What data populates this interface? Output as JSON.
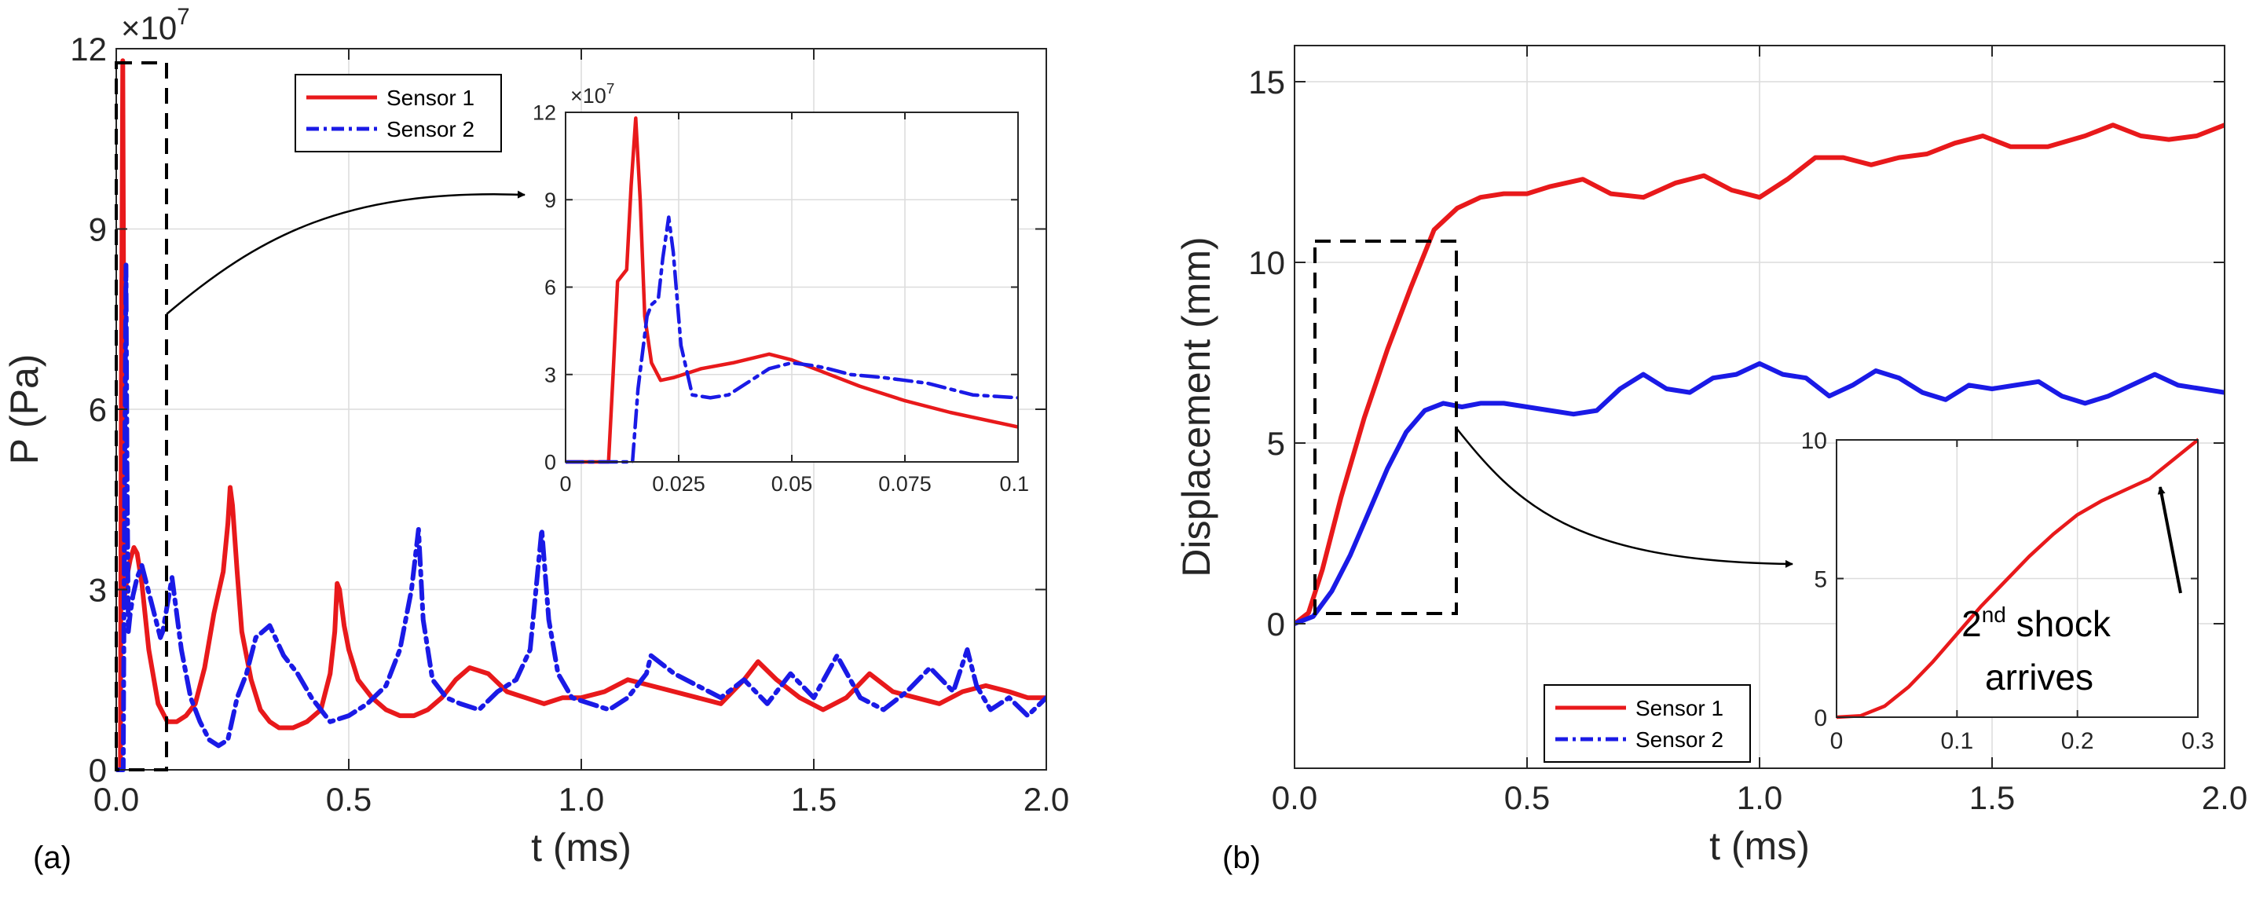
{
  "figure": {
    "panel_a_label": "(a)",
    "panel_b_label": "(b)"
  },
  "colors": {
    "sensor1": "#e8191b",
    "sensor2": "#1a1ae6",
    "axis": "#262626",
    "grid": "#dcdcdc"
  },
  "chart_data": [
    {
      "id": "a_main",
      "type": "line",
      "xlabel": "t (ms)",
      "ylabel": "P (Pa)",
      "exponent_label": "×10",
      "exponent_power": "7",
      "xlim": [
        0,
        2.0
      ],
      "ylim": [
        0,
        12
      ],
      "xticks": [
        0,
        0.5,
        1.0,
        1.5,
        2.0
      ],
      "xtick_labels": [
        "0.0",
        "0.5",
        "1.0",
        "1.5",
        "2.0"
      ],
      "yticks": [
        0,
        3,
        6,
        9,
        12
      ],
      "ytick_labels": [
        "0",
        "3",
        "6",
        "9",
        "12"
      ],
      "grid": true,
      "legend": {
        "position": "top-center",
        "entries": [
          "Sensor 1",
          "Sensor 2"
        ]
      },
      "zoom_box": {
        "x": [
          0,
          0.1
        ],
        "y": [
          0,
          12
        ]
      },
      "series": [
        {
          "name": "Sensor 1",
          "style": "solid",
          "color_key": "sensor1",
          "x": [
            0,
            0.009,
            0.011,
            0.014,
            0.018,
            0.02,
            0.025,
            0.03,
            0.038,
            0.045,
            0.055,
            0.07,
            0.09,
            0.11,
            0.13,
            0.15,
            0.17,
            0.19,
            0.21,
            0.23,
            0.24,
            0.245,
            0.25,
            0.26,
            0.27,
            0.29,
            0.31,
            0.33,
            0.35,
            0.38,
            0.41,
            0.44,
            0.46,
            0.47,
            0.475,
            0.48,
            0.49,
            0.5,
            0.52,
            0.55,
            0.58,
            0.61,
            0.64,
            0.67,
            0.7,
            0.73,
            0.76,
            0.8,
            0.84,
            0.88,
            0.92,
            0.96,
            1.0,
            1.05,
            1.1,
            1.15,
            1.2,
            1.25,
            1.3,
            1.35,
            1.38,
            1.42,
            1.47,
            1.52,
            1.57,
            1.62,
            1.67,
            1.72,
            1.77,
            1.82,
            1.87,
            1.92,
            1.96,
            2.0
          ],
          "y": [
            0,
            0,
            6.4,
            11.8,
            2.9,
            3.0,
            3.3,
            3.5,
            3.7,
            3.6,
            3.1,
            2.0,
            1.1,
            0.8,
            0.8,
            0.9,
            1.1,
            1.7,
            2.6,
            3.3,
            4.1,
            4.7,
            4.4,
            3.3,
            2.3,
            1.5,
            1.0,
            0.8,
            0.7,
            0.7,
            0.8,
            1.0,
            1.6,
            2.3,
            3.1,
            3.0,
            2.4,
            2.0,
            1.5,
            1.2,
            1.0,
            0.9,
            0.9,
            1.0,
            1.2,
            1.5,
            1.7,
            1.6,
            1.3,
            1.2,
            1.1,
            1.2,
            1.2,
            1.3,
            1.5,
            1.4,
            1.3,
            1.2,
            1.1,
            1.5,
            1.8,
            1.5,
            1.2,
            1.0,
            1.2,
            1.6,
            1.3,
            1.2,
            1.1,
            1.3,
            1.4,
            1.3,
            1.2,
            1.2
          ]
        },
        {
          "name": "Sensor 2",
          "style": "dashdot",
          "color_key": "sensor2",
          "x": [
            0,
            0.015,
            0.018,
            0.021,
            0.023,
            0.026,
            0.03,
            0.036,
            0.045,
            0.055,
            0.065,
            0.075,
            0.085,
            0.095,
            0.1,
            0.12,
            0.14,
            0.16,
            0.18,
            0.2,
            0.22,
            0.24,
            0.26,
            0.28,
            0.3,
            0.33,
            0.36,
            0.39,
            0.42,
            0.46,
            0.5,
            0.54,
            0.58,
            0.61,
            0.635,
            0.65,
            0.66,
            0.68,
            0.71,
            0.74,
            0.78,
            0.82,
            0.86,
            0.89,
            0.905,
            0.915,
            0.93,
            0.95,
            0.98,
            1.02,
            1.06,
            1.1,
            1.14,
            1.15,
            1.2,
            1.25,
            1.3,
            1.35,
            1.4,
            1.45,
            1.5,
            1.55,
            1.6,
            1.65,
            1.7,
            1.75,
            1.8,
            1.83,
            1.85,
            1.88,
            1.92,
            1.96,
            2.0
          ],
          "y": [
            0,
            0,
            4.8,
            8.4,
            5.2,
            2.3,
            2.6,
            2.9,
            3.2,
            3.4,
            3.1,
            2.8,
            2.5,
            2.2,
            2.3,
            3.2,
            2.0,
            1.2,
            0.8,
            0.5,
            0.4,
            0.5,
            1.2,
            1.6,
            2.2,
            2.4,
            1.9,
            1.6,
            1.2,
            0.8,
            0.9,
            1.1,
            1.4,
            2.0,
            3.0,
            4.0,
            2.5,
            1.5,
            1.2,
            1.1,
            1.0,
            1.3,
            1.5,
            2.0,
            3.2,
            4.0,
            2.5,
            1.6,
            1.2,
            1.1,
            1.0,
            1.2,
            1.6,
            1.9,
            1.6,
            1.4,
            1.2,
            1.5,
            1.1,
            1.6,
            1.2,
            1.9,
            1.2,
            1.0,
            1.3,
            1.7,
            1.3,
            2.0,
            1.4,
            1.0,
            1.2,
            0.9,
            1.2
          ]
        }
      ]
    },
    {
      "id": "a_inset",
      "type": "line",
      "exponent_label": "×10",
      "exponent_power": "7",
      "xlim": [
        0,
        0.1
      ],
      "ylim": [
        0,
        12
      ],
      "xticks": [
        0,
        0.025,
        0.05,
        0.075,
        0.1
      ],
      "xtick_labels": [
        "0",
        "0.025",
        "0.05",
        "0.075",
        "0.1"
      ],
      "yticks": [
        0,
        3,
        6,
        9,
        12
      ],
      "ytick_labels": [
        "0",
        "3",
        "6",
        "9",
        "12"
      ],
      "grid": true,
      "series": [
        {
          "name": "Sensor 1",
          "style": "solid",
          "color_key": "sensor1",
          "x": [
            0,
            0.0095,
            0.0105,
            0.0115,
            0.0125,
            0.0135,
            0.0145,
            0.0155,
            0.0165,
            0.0175,
            0.019,
            0.021,
            0.024,
            0.03,
            0.037,
            0.045,
            0.05,
            0.055,
            0.065,
            0.075,
            0.085,
            0.1
          ],
          "y": [
            0,
            0,
            3.0,
            6.2,
            6.4,
            6.6,
            9.5,
            11.8,
            9.0,
            5.0,
            3.4,
            2.8,
            2.9,
            3.2,
            3.4,
            3.7,
            3.5,
            3.2,
            2.6,
            2.1,
            1.7,
            1.2
          ]
        },
        {
          "name": "Sensor 2",
          "style": "dashdot",
          "color_key": "sensor2",
          "x": [
            0,
            0.0148,
            0.016,
            0.018,
            0.019,
            0.0205,
            0.0215,
            0.0228,
            0.0238,
            0.0255,
            0.028,
            0.032,
            0.036,
            0.04,
            0.045,
            0.05,
            0.055,
            0.058,
            0.063,
            0.07,
            0.08,
            0.09,
            0.1
          ],
          "y": [
            0,
            0,
            2.5,
            5.0,
            5.4,
            5.6,
            7.0,
            8.4,
            7.2,
            4.0,
            2.3,
            2.2,
            2.3,
            2.7,
            3.2,
            3.4,
            3.3,
            3.2,
            3.0,
            2.9,
            2.7,
            2.3,
            2.2
          ]
        }
      ]
    },
    {
      "id": "b_main",
      "type": "line",
      "xlabel": "t (ms)",
      "ylabel": "Displacement (mm)",
      "xlim": [
        0,
        2.0
      ],
      "ylim": [
        -4,
        16
      ],
      "xticks": [
        0,
        0.5,
        1.0,
        1.5,
        2.0
      ],
      "xtick_labels": [
        "0.0",
        "0.5",
        "1.0",
        "1.5",
        "2.0"
      ],
      "yticks": [
        0,
        5,
        10,
        15
      ],
      "ytick_labels": [
        "0",
        "5",
        "10",
        "15"
      ],
      "grid": true,
      "legend": {
        "position": "bottom-center",
        "entries": [
          "Sensor 1",
          "Sensor 2"
        ]
      },
      "zoom_box": {
        "x": [
          0.03,
          0.34
        ],
        "y": [
          0.3,
          10.5
        ]
      },
      "series": [
        {
          "name": "Sensor 1",
          "style": "solid",
          "color_key": "sensor1",
          "x": [
            0,
            0.03,
            0.06,
            0.1,
            0.15,
            0.2,
            0.25,
            0.3,
            0.35,
            0.4,
            0.45,
            0.5,
            0.55,
            0.62,
            0.68,
            0.75,
            0.82,
            0.88,
            0.94,
            1.0,
            1.06,
            1.12,
            1.18,
            1.24,
            1.3,
            1.36,
            1.42,
            1.48,
            1.54,
            1.62,
            1.7,
            1.76,
            1.82,
            1.88,
            1.94,
            2.0
          ],
          "y": [
            0,
            0.3,
            1.5,
            3.5,
            5.7,
            7.6,
            9.3,
            10.9,
            11.5,
            11.8,
            11.9,
            11.9,
            12.1,
            12.3,
            11.9,
            11.8,
            12.2,
            12.4,
            12.0,
            11.8,
            12.3,
            12.9,
            12.9,
            12.7,
            12.9,
            13.0,
            13.3,
            13.5,
            13.2,
            13.2,
            13.5,
            13.8,
            13.5,
            13.4,
            13.5,
            13.8
          ]
        },
        {
          "name": "Sensor 2",
          "style": "solid",
          "color_key": "sensor2",
          "x": [
            0,
            0.04,
            0.08,
            0.12,
            0.16,
            0.2,
            0.24,
            0.28,
            0.32,
            0.36,
            0.4,
            0.45,
            0.5,
            0.55,
            0.6,
            0.65,
            0.7,
            0.75,
            0.8,
            0.85,
            0.9,
            0.95,
            1.0,
            1.05,
            1.1,
            1.15,
            1.2,
            1.25,
            1.3,
            1.35,
            1.4,
            1.45,
            1.5,
            1.55,
            1.6,
            1.65,
            1.7,
            1.75,
            1.8,
            1.85,
            1.9,
            1.95,
            2.0
          ],
          "y": [
            0,
            0.2,
            0.9,
            1.9,
            3.1,
            4.3,
            5.3,
            5.9,
            6.1,
            6.0,
            6.1,
            6.1,
            6.0,
            5.9,
            5.8,
            5.9,
            6.5,
            6.9,
            6.5,
            6.4,
            6.8,
            6.9,
            7.2,
            6.9,
            6.8,
            6.3,
            6.6,
            7.0,
            6.8,
            6.4,
            6.2,
            6.6,
            6.5,
            6.6,
            6.7,
            6.3,
            6.1,
            6.3,
            6.6,
            6.9,
            6.6,
            6.5,
            6.4
          ]
        }
      ]
    },
    {
      "id": "b_inset",
      "type": "line",
      "xlim": [
        0,
        0.3
      ],
      "ylim": [
        0,
        10
      ],
      "xticks": [
        0,
        0.1,
        0.2,
        0.3
      ],
      "xtick_labels": [
        "0",
        "0.1",
        "0.2",
        "0.3"
      ],
      "yticks": [
        0,
        5,
        10
      ],
      "ytick_labels": [
        "0",
        "5",
        "10"
      ],
      "grid": true,
      "annotation": {
        "line1_base": "2",
        "line1_sup": "nd",
        "line1_rest": " shock",
        "line2": "arrives"
      },
      "series": [
        {
          "name": "Sensor 1",
          "style": "solid",
          "color_key": "sensor1",
          "x": [
            0,
            0.02,
            0.04,
            0.06,
            0.08,
            0.1,
            0.12,
            0.14,
            0.16,
            0.18,
            0.2,
            0.22,
            0.24,
            0.26,
            0.28,
            0.3
          ],
          "y": [
            0,
            0.05,
            0.4,
            1.1,
            2.0,
            3.0,
            4.0,
            4.9,
            5.8,
            6.6,
            7.3,
            7.8,
            8.2,
            8.6,
            9.3,
            10.0
          ]
        }
      ]
    }
  ]
}
